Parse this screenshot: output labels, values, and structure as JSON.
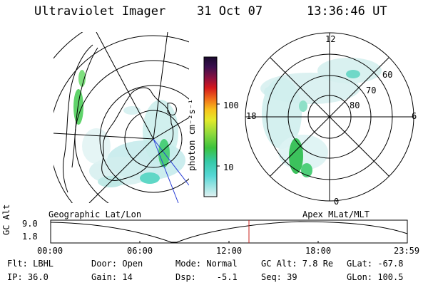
{
  "header": {
    "instrument": "Ultraviolet Imager",
    "date": "31 Oct 07",
    "time": "13:36:46 UT"
  },
  "colorbar": {
    "unit_label": "photon cm⁻²s⁻¹",
    "ticks": [
      "100",
      "10"
    ]
  },
  "polar_plot": {
    "mlt_labels": {
      "top": "12",
      "left": "18",
      "right": "6",
      "bottom": "0"
    },
    "lat_labels": [
      "60",
      "70",
      "80"
    ]
  },
  "captions": {
    "left": "Geographic Lat/Lon",
    "right": "Apex MLat/MLT"
  },
  "altitude_strip": {
    "axis_label": "GC Alt",
    "y_ticks": [
      "9.0",
      "1.8"
    ],
    "x_ticks": [
      "00:00",
      "06:00",
      "12:00",
      "18:00",
      "23:59"
    ]
  },
  "info_rows": [
    [
      "Flt: LBHL",
      "Door: Open",
      "Mode: Normal",
      "GC Alt: 7.8 Re",
      "GLat: -67.8"
    ],
    [
      "IP: 36.0",
      "Gain: 14",
      "Dsp:    -5.1",
      "Seq: 39",
      "GLon: 100.5"
    ]
  ],
  "colors": {
    "marker": "#c8201e",
    "aurora_green": "#3cc23c",
    "aurora_cyan": "#3ccfc4"
  }
}
